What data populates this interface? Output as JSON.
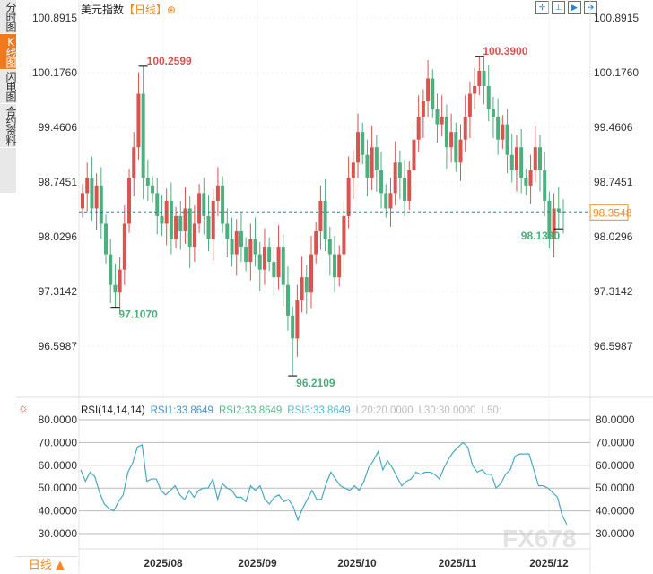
{
  "sidebar": {
    "tabs": [
      {
        "label": "分时图"
      },
      {
        "label": "K线图",
        "active": true
      },
      {
        "label": "闪电图"
      },
      {
        "label": "合约资料"
      }
    ]
  },
  "header": {
    "name": "美元指数",
    "period": "【日线】",
    "zoom_icon": "⊕"
  },
  "toolbar": {
    "icons": [
      "crosshair-icon",
      "range-start-icon",
      "play-icon",
      "exit-icon"
    ]
  },
  "price_axis": {
    "labels": [
      "100.8915",
      "100.1760",
      "99.4606",
      "98.7451",
      "98.0296",
      "97.3142",
      "96.5987"
    ],
    "current": "98.3548"
  },
  "annotations": {
    "high1": "100.2599",
    "low1": "97.1070",
    "low2": "96.2109",
    "high2": "100.3900",
    "low3": "98.1330"
  },
  "rsi": {
    "title": "RSI(14,14,14)",
    "rsi1": "RSI1:33.8649",
    "rsi2": "RSI2:33.8649",
    "rsi3": "RSI3:33.8649",
    "l20": "L20:20.0000",
    "l30": "L30:30.0000",
    "l50": "L50:",
    "axis": [
      "80.0000",
      "70.0000",
      "60.0000",
      "50.0000",
      "40.0000",
      "30.0000"
    ]
  },
  "dates": [
    "2025/08",
    "2025/09",
    "2025/10",
    "2025/11",
    "2025/12"
  ],
  "bottom": {
    "period": "日线 ▲"
  },
  "watermark": "FX678",
  "colors": {
    "up": "#d9534f",
    "down": "#4caf7d",
    "rsi": "#4aa8c4",
    "accent": "#f08a24"
  },
  "chart_data": {
    "type": "candlestick",
    "ylim": [
      96.5987,
      100.8915
    ],
    "closes": [
      98.6,
      98.8,
      98.4,
      98.7,
      98.2,
      97.8,
      97.4,
      97.3,
      97.6,
      98.2,
      98.8,
      99.2,
      99.9,
      98.8,
      98.7,
      98.6,
      98.3,
      98.2,
      98.5,
      98.0,
      98.3,
      98.1,
      98.4,
      97.9,
      98.2,
      98.6,
      98.3,
      98.0,
      98.5,
      98.7,
      98.2,
      98.0,
      97.8,
      98.1,
      97.9,
      97.7,
      98.0,
      97.8,
      97.6,
      97.9,
      97.7,
      97.5,
      97.9,
      97.4,
      97.0,
      96.7,
      97.2,
      97.5,
      97.3,
      97.8,
      98.1,
      98.5,
      98.0,
      97.8,
      97.5,
      97.8,
      98.3,
      98.8,
      99.0,
      99.4,
      99.1,
      98.8,
      99.2,
      98.9,
      98.6,
      98.4,
      98.6,
      99.0,
      98.8,
      98.5,
      98.9,
      99.3,
      99.6,
      99.8,
      100.1,
      99.7,
      99.5,
      99.6,
      99.2,
      99.4,
      99.0,
      99.3,
      99.6,
      99.9,
      100.0,
      100.2,
      100.0,
      99.7,
      99.6,
      99.3,
      99.5,
      99.1,
      98.9,
      99.2,
      98.8,
      98.7,
      98.9,
      99.2,
      98.9,
      98.5,
      98.0,
      98.4,
      98.36,
      98.35
    ],
    "rsi_values": [
      58,
      53,
      57,
      55,
      48,
      43,
      41,
      40,
      44,
      47,
      57,
      61,
      68,
      69,
      53,
      54,
      54,
      49,
      47,
      49,
      51,
      47,
      45,
      49,
      46,
      49,
      50,
      50,
      54,
      45,
      52,
      50,
      49,
      46,
      46,
      44,
      51,
      49,
      51,
      45,
      43,
      46,
      47,
      44,
      45,
      42,
      36,
      41,
      45,
      49,
      45,
      45,
      52,
      57,
      54,
      51,
      50,
      49,
      51,
      49,
      53,
      59,
      62,
      66,
      58,
      62,
      59,
      55,
      51,
      53,
      54,
      57,
      56,
      57,
      57,
      56,
      54,
      59,
      63,
      66,
      68,
      70,
      68,
      60,
      57,
      58,
      56,
      56,
      50,
      52,
      56,
      58,
      64,
      65,
      65,
      65,
      58,
      51,
      51,
      50,
      48,
      46,
      38,
      34
    ],
    "rsi_ylim": [
      30,
      80
    ]
  }
}
